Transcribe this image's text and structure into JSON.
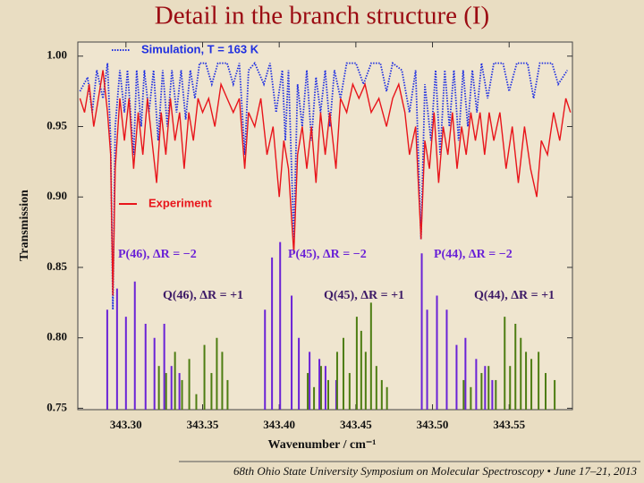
{
  "title": "Detail in the branch structure (I)",
  "footer": "68th Ohio State University Symposium on Molecular Spectroscopy • June 17–21, 2013",
  "chart_data": {
    "type": "line",
    "x_label": "Wavenumber / cm⁻¹",
    "y_label": "Transmission",
    "xlim": [
      343.2686,
      343.5913
    ],
    "ylim": [
      0.749,
      1.01
    ],
    "xticks": [
      {
        "value": 343.3,
        "label": "343.30"
      },
      {
        "value": 343.35,
        "label": "343.35"
      },
      {
        "value": 343.4,
        "label": "343.40"
      },
      {
        "value": 343.45,
        "label": "343.45"
      },
      {
        "value": 343.5,
        "label": "343.50"
      },
      {
        "value": 343.55,
        "label": "343.55"
      }
    ],
    "yticks": [
      {
        "value": 0.75,
        "label": "0.75"
      },
      {
        "value": 0.8,
        "label": "0.80"
      },
      {
        "value": 0.85,
        "label": "0.85"
      },
      {
        "value": 0.9,
        "label": "0.90"
      },
      {
        "value": 0.95,
        "label": "0.95"
      },
      {
        "value": 1.0,
        "label": "1.00"
      }
    ],
    "series": [
      {
        "name": "Simulation, T = 163 K",
        "color": "#1f2fe0",
        "style": "dotted",
        "x": [
          343.27,
          343.275,
          343.278,
          343.281,
          343.285,
          343.288,
          343.29,
          343.2915,
          343.293,
          343.296,
          343.299,
          343.301,
          343.305,
          343.307,
          343.31,
          343.312,
          343.315,
          343.318,
          343.321,
          343.324,
          343.327,
          343.33,
          343.333,
          343.336,
          343.339,
          343.342,
          343.345,
          343.348,
          343.352,
          343.356,
          343.36,
          343.366,
          343.37,
          343.374,
          343.3775,
          343.38,
          343.384,
          343.39,
          343.394,
          343.398,
          343.402,
          343.404,
          343.406,
          343.4095,
          343.412,
          343.415,
          343.418,
          343.421,
          343.424,
          343.427,
          343.43,
          343.433,
          343.436,
          343.44,
          343.444,
          343.45,
          343.455,
          343.46,
          343.466,
          343.47,
          343.474,
          343.48,
          343.485,
          343.489,
          343.4925,
          343.495,
          343.499,
          343.502,
          343.505,
          343.508,
          343.511,
          343.514,
          343.517,
          343.52,
          343.523,
          343.526,
          343.529,
          343.532,
          343.536,
          343.54,
          343.546,
          343.55,
          343.555,
          343.562,
          343.566,
          343.57,
          343.578,
          343.582,
          343.588
        ],
        "values": [
          0.975,
          0.985,
          0.96,
          0.99,
          0.97,
          0.995,
          0.94,
          0.82,
          0.95,
          0.99,
          0.96,
          0.99,
          0.93,
          0.99,
          0.95,
          0.99,
          0.96,
          0.99,
          0.94,
          0.99,
          0.95,
          0.99,
          0.96,
          0.99,
          0.955,
          0.99,
          0.97,
          0.995,
          0.995,
          0.98,
          0.995,
          0.995,
          0.98,
          0.995,
          0.93,
          0.99,
          0.995,
          0.98,
          0.995,
          0.96,
          0.99,
          0.94,
          0.99,
          0.87,
          0.98,
          0.95,
          0.99,
          0.94,
          0.985,
          0.96,
          0.99,
          0.95,
          0.99,
          0.97,
          0.995,
          0.995,
          0.98,
          0.995,
          0.995,
          0.975,
          0.995,
          0.99,
          0.96,
          0.99,
          0.87,
          0.98,
          0.94,
          0.99,
          0.93,
          0.99,
          0.95,
          0.99,
          0.94,
          0.99,
          0.95,
          0.99,
          0.96,
          0.995,
          0.97,
          0.995,
          0.995,
          0.975,
          0.995,
          0.995,
          0.97,
          0.995,
          0.995,
          0.98,
          0.99
        ]
      },
      {
        "name": "Experiment",
        "color": "#e8151b",
        "style": "solid",
        "x": [
          343.27,
          343.273,
          343.276,
          343.279,
          343.282,
          343.285,
          343.288,
          343.29,
          343.2915,
          343.293,
          343.296,
          343.299,
          343.302,
          343.305,
          343.308,
          343.311,
          343.314,
          343.317,
          343.32,
          343.323,
          343.326,
          343.329,
          343.332,
          343.335,
          343.338,
          343.341,
          343.344,
          343.347,
          343.35,
          343.354,
          343.358,
          343.362,
          343.366,
          343.37,
          343.374,
          343.3775,
          343.38,
          343.384,
          343.388,
          343.392,
          343.396,
          343.4,
          343.403,
          343.406,
          343.4095,
          343.412,
          343.415,
          343.418,
          343.421,
          343.424,
          343.427,
          343.43,
          343.433,
          343.437,
          343.44,
          343.444,
          343.448,
          343.452,
          343.456,
          343.46,
          343.465,
          343.47,
          343.474,
          343.478,
          343.482,
          343.485,
          343.489,
          343.4925,
          343.495,
          343.498,
          343.501,
          343.504,
          343.507,
          343.51,
          343.513,
          343.516,
          343.519,
          343.522,
          343.525,
          343.528,
          343.531,
          343.534,
          343.537,
          343.54,
          343.544,
          343.548,
          343.552,
          343.556,
          343.56,
          343.564,
          343.568,
          343.571,
          343.575,
          343.579,
          343.583,
          343.587,
          343.59
        ],
        "values": [
          0.97,
          0.96,
          0.98,
          0.95,
          0.97,
          0.99,
          0.96,
          0.93,
          0.83,
          0.92,
          0.97,
          0.94,
          0.97,
          0.92,
          0.96,
          0.93,
          0.97,
          0.94,
          0.91,
          0.96,
          0.93,
          0.97,
          0.94,
          0.96,
          0.92,
          0.96,
          0.94,
          0.97,
          0.96,
          0.97,
          0.95,
          0.98,
          0.97,
          0.96,
          0.97,
          0.92,
          0.96,
          0.95,
          0.97,
          0.93,
          0.95,
          0.9,
          0.94,
          0.92,
          0.86,
          0.93,
          0.95,
          0.92,
          0.95,
          0.91,
          0.96,
          0.93,
          0.96,
          0.92,
          0.97,
          0.96,
          0.98,
          0.97,
          0.98,
          0.96,
          0.97,
          0.95,
          0.97,
          0.98,
          0.96,
          0.93,
          0.95,
          0.87,
          0.94,
          0.92,
          0.96,
          0.91,
          0.95,
          0.93,
          0.96,
          0.92,
          0.95,
          0.93,
          0.96,
          0.94,
          0.96,
          0.93,
          0.96,
          0.94,
          0.96,
          0.92,
          0.95,
          0.91,
          0.95,
          0.92,
          0.9,
          0.94,
          0.93,
          0.96,
          0.94,
          0.97,
          0.96
        ]
      },
      {
        "type": "stick",
        "color": "#6a22d6",
        "x": [
          343.2878,
          343.2942,
          343.3,
          343.3058,
          343.3128,
          343.3186,
          343.325,
          343.3297,
          343.3349,
          343.3907,
          343.3953,
          343.4006,
          343.4081,
          343.4128,
          343.4198,
          343.4262,
          343.4302,
          343.4372,
          343.493,
          343.4965,
          343.5029,
          343.5093,
          343.5157,
          343.5215,
          343.5285,
          343.5343,
          343.539
        ],
        "values": [
          0.82,
          0.835,
          0.815,
          0.84,
          0.81,
          0.8,
          0.81,
          0.78,
          0.775,
          0.82,
          0.857,
          0.868,
          0.83,
          0.8,
          0.79,
          0.785,
          0.78,
          0.77,
          0.86,
          0.82,
          0.83,
          0.82,
          0.795,
          0.8,
          0.785,
          0.78,
          0.77
        ]
      },
      {
        "type": "stick",
        "color": "#4d7d12",
        "x": [
          343.3215,
          343.3262,
          343.332,
          343.3366,
          343.3413,
          343.3459,
          343.3512,
          343.3558,
          343.3593,
          343.3628,
          343.3663,
          343.4186,
          343.4227,
          343.4273,
          343.432,
          343.4378,
          343.4419,
          343.4459,
          343.4506,
          343.4535,
          343.4564,
          343.4599,
          343.4634,
          343.4669,
          343.4703,
          343.5203,
          343.525,
          343.532,
          343.5366,
          343.5413,
          343.5471,
          343.5506,
          343.5541,
          343.5576,
          343.561,
          343.5645,
          343.5692,
          343.5738,
          343.5797
        ],
        "values": [
          0.78,
          0.775,
          0.79,
          0.77,
          0.785,
          0.76,
          0.795,
          0.775,
          0.8,
          0.79,
          0.77,
          0.775,
          0.765,
          0.78,
          0.77,
          0.79,
          0.8,
          0.775,
          0.815,
          0.805,
          0.79,
          0.825,
          0.78,
          0.77,
          0.765,
          0.77,
          0.765,
          0.775,
          0.78,
          0.77,
          0.815,
          0.78,
          0.81,
          0.8,
          0.79,
          0.785,
          0.79,
          0.775,
          0.77
        ]
      }
    ],
    "annotations": [
      "P(46), ΔR = −2",
      "P(45), ΔR = −2",
      "P(44), ΔR = −2",
      "Q(46), ΔR = +1",
      "Q(45), ΔR = +1",
      "Q(44), ΔR = +1"
    ]
  }
}
